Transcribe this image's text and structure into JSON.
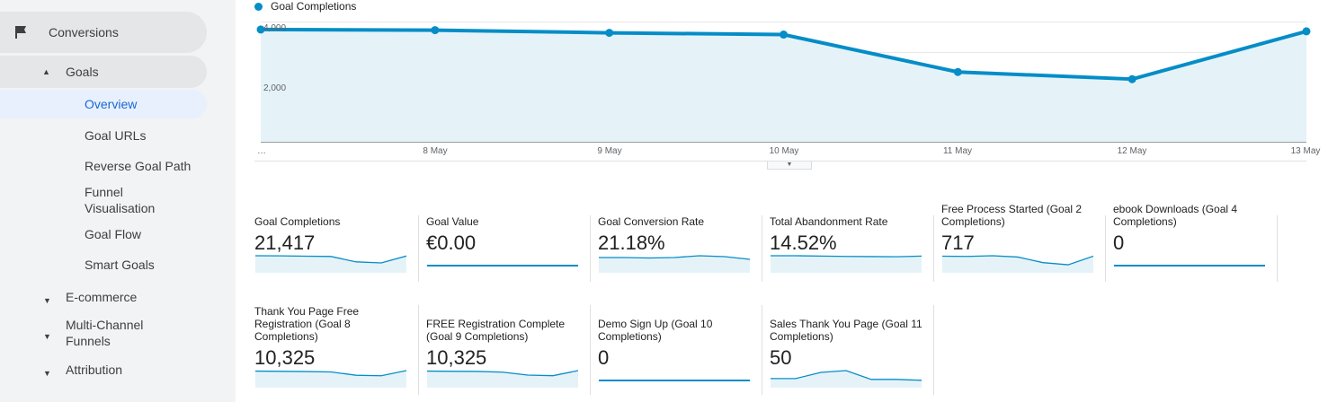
{
  "sidebar": {
    "conversions": "Conversions",
    "goals": "Goals",
    "overview": "Overview",
    "goal_urls": "Goal URLs",
    "reverse_goal_path": "Reverse Goal Path",
    "funnel_line1": "Funnel",
    "funnel_line2": "Visualisation",
    "goal_flow": "Goal Flow",
    "smart_goals": "Smart Goals",
    "ecommerce": "E-commerce",
    "multichannel_line1": "Multi-Channel",
    "multichannel_line2": "Funnels",
    "attribution": "Attribution"
  },
  "chart_data": {
    "type": "area",
    "legend": "Goal Completions",
    "color": "#058dc7",
    "x": [
      "…",
      "8 May",
      "9 May",
      "10 May",
      "11 May",
      "12 May",
      "13 May"
    ],
    "values": [
      3780,
      3760,
      3670,
      3610,
      2350,
      2110,
      3720
    ],
    "yticks": [
      "4,000",
      "2,000"
    ],
    "ylim": [
      0,
      4050
    ]
  },
  "metrics": [
    {
      "title": "Goal Completions",
      "value": "21,417",
      "spark": [
        3780,
        3760,
        3670,
        3610,
        2350,
        2110,
        3720
      ]
    },
    {
      "title": "Goal Value",
      "value": "€0.00",
      "spark": [
        0,
        0,
        0,
        0,
        0,
        0,
        0
      ]
    },
    {
      "title": "Goal Conversion Rate",
      "value": "21.18%",
      "spark": [
        22,
        22,
        21.5,
        22,
        24,
        23,
        20
      ]
    },
    {
      "title": "Total Abandonment Rate",
      "value": "14.52%",
      "spark": [
        15,
        15,
        14.8,
        14.6,
        14.5,
        14.4,
        14.8
      ]
    },
    {
      "title": "Free Process Started (Goal 2 Completions)",
      "value": "717",
      "spark": [
        120,
        118,
        124,
        112,
        60,
        40,
        120
      ]
    },
    {
      "title": "ebook Downloads (Goal 4 Completions)",
      "value": "0",
      "spark": [
        0,
        0,
        0,
        0,
        0,
        0,
        0
      ]
    },
    {
      "title": "Thank You Page Free Registration (Goal 8 Completions)",
      "value": "10,325",
      "spark": [
        1800,
        1780,
        1760,
        1720,
        1400,
        1350,
        1850
      ]
    },
    {
      "title": "FREE Registration Complete (Goal 9 Completions)",
      "value": "10,325",
      "spark": [
        1800,
        1780,
        1770,
        1700,
        1420,
        1360,
        1850
      ]
    },
    {
      "title": "Demo Sign Up (Goal 10 Completions)",
      "value": "0",
      "spark": [
        0,
        0,
        0,
        0,
        0,
        0,
        0
      ]
    },
    {
      "title": "Sales Thank You Page (Goal 11 Completions)",
      "value": "50",
      "spark": [
        5,
        5,
        12,
        14,
        4,
        4,
        3
      ]
    }
  ]
}
